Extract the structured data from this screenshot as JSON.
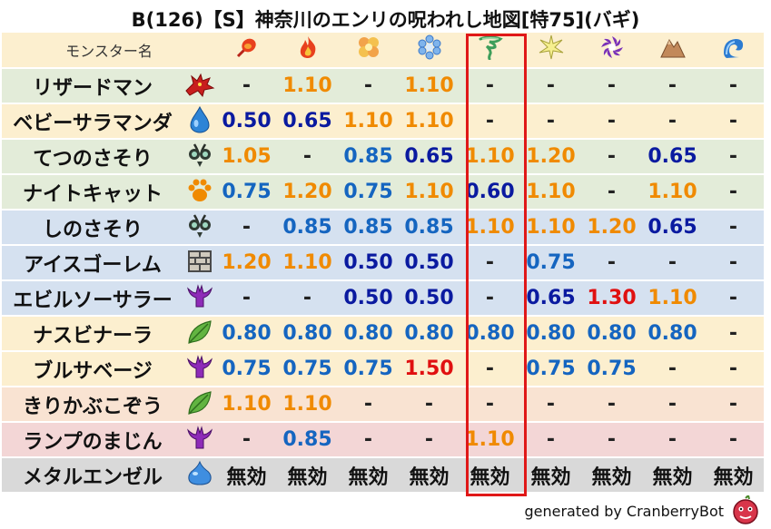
{
  "title": "B(126)【S】神奈川のエンリの呪われし地図[特75](バギ)",
  "header": {
    "name_label": "モンスター名",
    "elements": [
      "fire-bolt-icon",
      "flame-icon",
      "explosion-icon",
      "ice-icon",
      "wind-icon",
      "lightning-icon",
      "darkness-icon",
      "earth-icon",
      "water-icon"
    ]
  },
  "rows": [
    {
      "name": "リザードマン",
      "icon": "dragon-icon",
      "theme": "green",
      "values": [
        "-",
        "1.10",
        "-",
        "1.10",
        "-",
        "-",
        "-",
        "-",
        "-"
      ],
      "colors": [
        "dash",
        "orange",
        "dash",
        "orange",
        "dash",
        "dash",
        "dash",
        "dash",
        "dash"
      ]
    },
    {
      "name": "ベビーサラマンダ",
      "icon": "water-drop-icon",
      "theme": "yellow",
      "values": [
        "0.50",
        "0.65",
        "1.10",
        "1.10",
        "-",
        "-",
        "-",
        "-",
        "-"
      ],
      "colors": [
        "navy",
        "navy",
        "orange",
        "orange",
        "dash",
        "dash",
        "dash",
        "dash",
        "dash"
      ]
    },
    {
      "name": "てつのさそり",
      "icon": "insect-icon",
      "theme": "green",
      "values": [
        "1.05",
        "-",
        "0.85",
        "0.65",
        "1.10",
        "1.20",
        "-",
        "0.65",
        "-"
      ],
      "colors": [
        "orange",
        "dash",
        "blue",
        "navy",
        "orange",
        "orange",
        "dash",
        "navy",
        "dash"
      ]
    },
    {
      "name": "ナイトキャット",
      "icon": "paw-icon",
      "theme": "green",
      "values": [
        "0.75",
        "1.20",
        "0.75",
        "1.10",
        "0.60",
        "1.10",
        "-",
        "1.10",
        "-"
      ],
      "colors": [
        "blue",
        "orange",
        "blue",
        "orange",
        "navy",
        "orange",
        "dash",
        "orange",
        "dash"
      ]
    },
    {
      "name": "しのさそり",
      "icon": "insect-icon",
      "theme": "blue",
      "values": [
        "-",
        "0.85",
        "0.85",
        "0.85",
        "1.10",
        "1.10",
        "1.20",
        "0.65",
        "-"
      ],
      "colors": [
        "dash",
        "blue",
        "blue",
        "blue",
        "orange",
        "orange",
        "orange",
        "navy",
        "dash"
      ]
    },
    {
      "name": "アイスゴーレム",
      "icon": "brick-icon",
      "theme": "blue",
      "values": [
        "1.20",
        "1.10",
        "0.50",
        "0.50",
        "-",
        "0.75",
        "-",
        "-",
        "-"
      ],
      "colors": [
        "orange",
        "orange",
        "navy",
        "navy",
        "dash",
        "blue",
        "dash",
        "dash",
        "dash"
      ]
    },
    {
      "name": "エビルソーサラー",
      "icon": "trident-icon",
      "theme": "blue",
      "values": [
        "-",
        "-",
        "0.50",
        "0.50",
        "-",
        "0.65",
        "1.30",
        "1.10",
        "-"
      ],
      "colors": [
        "dash",
        "dash",
        "navy",
        "navy",
        "dash",
        "navy",
        "red",
        "orange",
        "dash"
      ]
    },
    {
      "name": "ナスビナーラ",
      "icon": "leaf-icon",
      "theme": "yellow",
      "values": [
        "0.80",
        "0.80",
        "0.80",
        "0.80",
        "0.80",
        "0.80",
        "0.80",
        "0.80",
        "-"
      ],
      "colors": [
        "blue",
        "blue",
        "blue",
        "blue",
        "blue",
        "blue",
        "blue",
        "blue",
        "dash"
      ]
    },
    {
      "name": "ブルサベージ",
      "icon": "trident-icon",
      "theme": "yellow",
      "values": [
        "0.75",
        "0.75",
        "0.75",
        "1.50",
        "-",
        "0.75",
        "0.75",
        "-",
        "-"
      ],
      "colors": [
        "blue",
        "blue",
        "blue",
        "red",
        "dash",
        "blue",
        "blue",
        "dash",
        "dash"
      ]
    },
    {
      "name": "きりかぶこぞう",
      "icon": "leaf-icon",
      "theme": "peach",
      "values": [
        "1.10",
        "1.10",
        "-",
        "-",
        "-",
        "-",
        "-",
        "-",
        "-"
      ],
      "colors": [
        "orange",
        "orange",
        "dash",
        "dash",
        "dash",
        "dash",
        "dash",
        "dash",
        "dash"
      ]
    },
    {
      "name": "ランプのまじん",
      "icon": "trident-icon",
      "theme": "pink",
      "values": [
        "-",
        "0.85",
        "-",
        "-",
        "1.10",
        "-",
        "-",
        "-",
        "-"
      ],
      "colors": [
        "dash",
        "blue",
        "dash",
        "dash",
        "orange",
        "dash",
        "dash",
        "dash",
        "dash"
      ]
    },
    {
      "name": "メタルエンゼル",
      "icon": "slime-icon",
      "theme": "gray",
      "values": [
        "無効",
        "無効",
        "無効",
        "無効",
        "無効",
        "無効",
        "無効",
        "無効",
        "無効"
      ],
      "colors": [
        "black",
        "black",
        "black",
        "black",
        "black",
        "black",
        "black",
        "black",
        "black"
      ]
    }
  ],
  "footer": "generated by CranberryBot",
  "colors": {
    "highlight": "#e01818",
    "blue": "#1565c0",
    "navy": "#0a1aa0",
    "orange": "#f08a00",
    "red": "#e01010"
  }
}
